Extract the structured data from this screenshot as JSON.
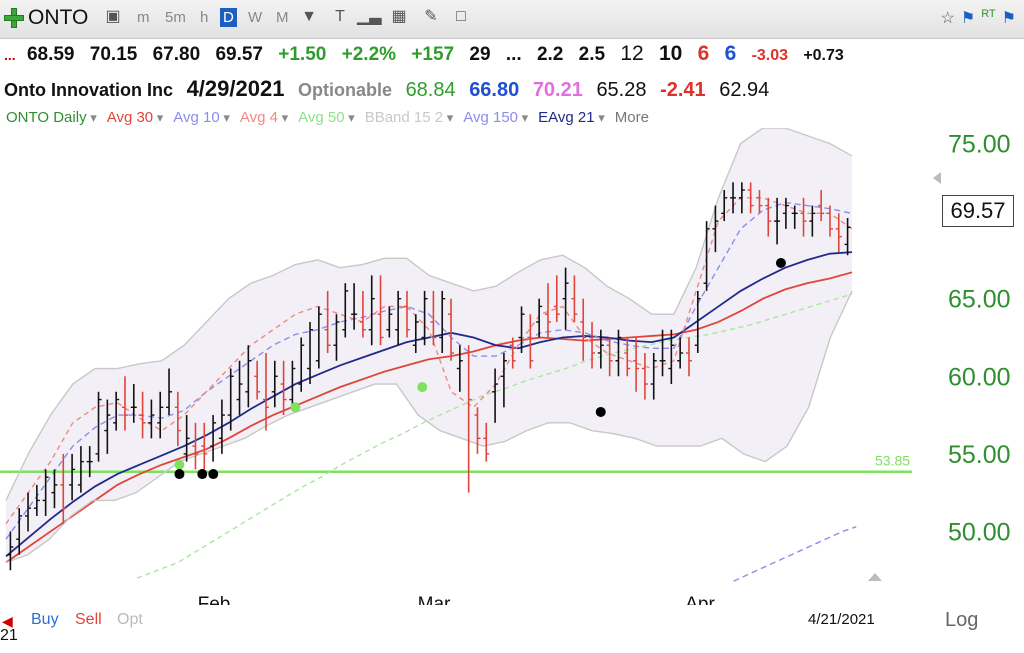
{
  "toolbar": {
    "symbol": "ONTO",
    "periods": [
      "m",
      "5m",
      "h",
      "D",
      "W",
      "M"
    ],
    "active_period": "D",
    "right_badge": "RT"
  },
  "quote": {
    "open": "68.59",
    "high": "70.15",
    "low": "67.80",
    "close": "69.57",
    "change": "+1.50",
    "change_pct": "+2.2%",
    "vol_change": "+157",
    "v1": "29",
    "ellipsis": "...",
    "v2": "2.2",
    "v3": "2.5",
    "v4": "12",
    "v5": "10",
    "v6": "6",
    "v7": "6",
    "v8": "-3.03",
    "v9": "+0.73",
    "company": "Onto Innovation Inc",
    "date": "4/29/2021",
    "optionable": "Optionable",
    "f1": "68.84",
    "f2": "66.80",
    "f3": "70.21",
    "f4": "65.28",
    "f5": "-2.41",
    "f6": "62.94"
  },
  "legend": {
    "items": [
      {
        "label": "ONTO Daily",
        "color": "#2f8f2f"
      },
      {
        "label": "Avg 30",
        "color": "#e0453a"
      },
      {
        "label": "Avg 10",
        "color": "#8c8cf0"
      },
      {
        "label": "Avg 4",
        "color": "#f08a80"
      },
      {
        "label": "Avg 50",
        "color": "#8fe08f"
      },
      {
        "label": "BBand 15 2",
        "color": "#c8c8c8"
      },
      {
        "label": "Avg 150",
        "color": "#8c8cf0"
      },
      {
        "label": "EAvg 21",
        "color": "#1f2a8a"
      },
      {
        "label": "More",
        "color": "#777777"
      }
    ]
  },
  "chart_data": {
    "type": "line",
    "title": "ONTO Daily",
    "x_labels": [
      "Feb",
      "Mar",
      "Apr"
    ],
    "y_ticks": [
      "75.00",
      "65.00",
      "60.00",
      "55.00",
      "50.00"
    ],
    "y_range": [
      47.0,
      76.0
    ],
    "last_price": "69.57",
    "bottom_date": "4/21/2021",
    "horizontal_line": {
      "value": 53.85,
      "label": "53.85",
      "color": "#80e060"
    },
    "candles": [
      [
        48.5,
        50.0,
        47.5,
        49.0
      ],
      [
        49.5,
        51.5,
        48.5,
        51.0
      ],
      [
        51.0,
        52.5,
        50.0,
        51.5
      ],
      [
        51.5,
        53.0,
        51.0,
        52.0
      ],
      [
        52.0,
        54.0,
        51.0,
        53.5
      ],
      [
        52.5,
        54.0,
        51.5,
        53.0
      ],
      [
        53.0,
        55.0,
        50.5,
        51.5
      ],
      [
        53.0,
        55.0,
        52.0,
        54.0
      ],
      [
        53.0,
        55.5,
        52.5,
        54.5
      ],
      [
        54.5,
        55.5,
        53.5,
        54.5
      ],
      [
        55.0,
        59.0,
        54.5,
        58.5
      ],
      [
        56.5,
        58.5,
        55.0,
        57.5
      ],
      [
        57.0,
        59.0,
        56.5,
        58.5
      ],
      [
        58.0,
        60.0,
        56.5,
        57.5
      ],
      [
        58.0,
        59.5,
        57.0,
        58.0
      ],
      [
        57.5,
        59.0,
        56.0,
        57.0
      ],
      [
        57.0,
        58.5,
        56.0,
        57.5
      ],
      [
        57.0,
        59.0,
        56.0,
        58.0
      ],
      [
        58.0,
        60.5,
        57.5,
        59.0
      ],
      [
        58.0,
        59.0,
        55.5,
        56.5
      ],
      [
        55.0,
        57.5,
        54.5,
        56.0
      ],
      [
        55.5,
        57.0,
        54.0,
        55.0
      ],
      [
        55.5,
        57.0,
        54.0,
        55.0
      ],
      [
        55.5,
        57.5,
        54.5,
        57.0
      ],
      [
        56.0,
        58.5,
        55.0,
        57.5
      ],
      [
        57.5,
        60.5,
        56.5,
        60.0
      ],
      [
        58.5,
        61.0,
        57.5,
        59.5
      ],
      [
        59.0,
        62.0,
        58.0,
        61.0
      ],
      [
        60.0,
        61.0,
        58.5,
        59.0
      ],
      [
        58.5,
        61.5,
        56.5,
        58.0
      ],
      [
        59.0,
        61.0,
        58.0,
        60.0
      ],
      [
        59.5,
        61.0,
        57.5,
        58.5
      ],
      [
        58.5,
        61.0,
        58.0,
        60.5
      ],
      [
        59.5,
        62.5,
        59.0,
        62.0
      ],
      [
        60.5,
        63.5,
        59.5,
        63.0
      ],
      [
        61.0,
        64.5,
        60.5,
        64.0
      ],
      [
        63.0,
        65.5,
        61.5,
        62.0
      ],
      [
        62.0,
        64.0,
        61.0,
        63.5
      ],
      [
        63.0,
        66.0,
        62.5,
        65.5
      ],
      [
        64.0,
        66.0,
        63.0,
        64.0
      ],
      [
        63.5,
        65.5,
        62.5,
        63.0
      ],
      [
        63.0,
        66.5,
        62.0,
        65.0
      ],
      [
        64.0,
        66.5,
        62.0,
        62.5
      ],
      [
        63.0,
        64.5,
        62.5,
        64.0
      ],
      [
        63.0,
        65.5,
        62.0,
        65.0
      ],
      [
        64.5,
        65.5,
        62.5,
        63.0
      ],
      [
        62.0,
        64.0,
        61.5,
        63.5
      ],
      [
        62.5,
        65.5,
        62.0,
        65.0
      ],
      [
        63.5,
        65.5,
        62.0,
        62.5
      ],
      [
        62.5,
        65.5,
        61.5,
        65.0
      ],
      [
        64.0,
        65.0,
        61.0,
        61.5
      ],
      [
        60.5,
        62.0,
        59.0,
        61.0
      ],
      [
        61.5,
        62.0,
        52.5,
        58.5
      ],
      [
        57.5,
        58.0,
        55.0,
        56.0
      ],
      [
        56.0,
        57.0,
        54.5,
        55.0
      ],
      [
        59.0,
        60.5,
        57.0,
        59.5
      ],
      [
        60.0,
        61.5,
        58.0,
        61.0
      ],
      [
        62.0,
        62.5,
        60.5,
        61.0
      ],
      [
        62.5,
        64.5,
        61.5,
        64.0
      ],
      [
        62.5,
        64.0,
        60.5,
        61.0
      ],
      [
        63.5,
        65.0,
        62.5,
        64.5
      ],
      [
        64.0,
        66.0,
        62.5,
        63.5
      ],
      [
        64.5,
        66.5,
        63.5,
        64.0
      ],
      [
        65.0,
        67.0,
        63.0,
        66.0
      ],
      [
        65.0,
        66.5,
        63.5,
        64.0
      ],
      [
        63.5,
        65.0,
        61.0,
        62.5
      ],
      [
        62.5,
        63.5,
        60.5,
        61.5
      ],
      [
        61.5,
        63.0,
        60.5,
        62.0
      ],
      [
        62.0,
        62.5,
        60.0,
        61.0
      ],
      [
        61.0,
        63.0,
        60.0,
        62.5
      ],
      [
        61.5,
        62.5,
        60.0,
        60.5
      ],
      [
        61.0,
        62.5,
        59.0,
        60.5
      ],
      [
        60.5,
        61.5,
        58.5,
        59.5
      ],
      [
        59.5,
        61.5,
        58.5,
        61.0
      ],
      [
        61.0,
        63.0,
        60.0,
        61.0
      ],
      [
        60.5,
        63.0,
        59.5,
        62.0
      ],
      [
        61.0,
        62.5,
        60.5,
        61.5
      ],
      [
        61.5,
        62.5,
        60.0,
        61.0
      ],
      [
        62.0,
        65.5,
        61.5,
        65.0
      ],
      [
        66.0,
        70.0,
        65.5,
        69.5
      ],
      [
        69.5,
        71.0,
        68.0,
        70.0
      ],
      [
        70.5,
        72.0,
        70.0,
        71.5
      ],
      [
        71.5,
        72.5,
        70.5,
        71.5
      ],
      [
        71.5,
        72.5,
        70.5,
        72.0
      ],
      [
        72.0,
        72.5,
        70.5,
        71.0
      ],
      [
        71.5,
        72.0,
        70.5,
        71.0
      ],
      [
        71.0,
        71.5,
        69.0,
        70.0
      ],
      [
        70.0,
        71.5,
        68.5,
        70.0
      ],
      [
        70.5,
        71.5,
        69.5,
        71.0
      ],
      [
        70.5,
        71.0,
        69.5,
        70.5
      ],
      [
        70.5,
        71.5,
        69.0,
        70.0
      ],
      [
        70.0,
        71.0,
        69.0,
        70.5
      ],
      [
        71.0,
        72.0,
        70.0,
        70.5
      ],
      [
        70.5,
        71.0,
        69.0,
        69.5
      ],
      [
        69.5,
        70.5,
        68.0,
        69.0
      ],
      [
        68.5,
        70.2,
        67.8,
        69.6
      ]
    ],
    "series": [
      {
        "name": "Avg 30",
        "color": "#e0453a",
        "dash": "",
        "values": [
          48.0,
          49.0,
          50.0,
          51.0,
          52.0,
          53.0,
          53.7,
          54.3,
          54.8,
          55.3,
          56.0,
          56.8,
          57.5,
          58.1,
          58.7,
          59.3,
          59.8,
          60.3,
          60.7,
          61.1,
          61.3,
          61.6,
          62.0,
          62.3,
          62.5,
          62.4,
          62.3,
          62.4,
          62.5,
          62.6,
          62.7,
          63.0,
          63.5,
          64.2,
          65.0,
          65.6,
          66.0,
          66.3,
          66.7
        ]
      },
      {
        "name": "EAvg 21",
        "color": "#1f2a8a",
        "dash": "",
        "values": [
          48.4,
          49.6,
          50.8,
          51.9,
          52.9,
          53.7,
          54.3,
          54.9,
          55.5,
          56.2,
          57.0,
          57.9,
          58.7,
          59.5,
          60.1,
          60.7,
          61.2,
          61.7,
          62.2,
          62.5,
          62.8,
          62.5,
          62.0,
          61.8,
          62.2,
          62.5,
          62.6,
          62.5,
          62.3,
          62.2,
          62.5,
          63.5,
          64.5,
          65.5,
          66.3,
          67.0,
          67.5,
          67.9,
          68.0
        ]
      },
      {
        "name": "Avg 10",
        "color": "#8c8cf0",
        "dash": "6,4",
        "values": [
          49.5,
          51.5,
          53.5,
          55.5,
          56.7,
          57.5,
          57.5,
          57.3,
          57.8,
          59.0,
          60.0,
          61.0,
          62.0,
          62.7,
          63.0,
          63.5,
          63.8,
          64.2,
          64.5,
          64.0,
          62.5,
          61.3,
          61.3,
          62.0,
          62.8,
          63.0,
          62.8,
          62.3,
          62.0,
          61.8,
          61.8,
          64.5,
          67.0,
          69.5,
          70.7,
          71.2,
          71.0,
          70.8,
          70.5
        ]
      },
      {
        "name": "Avg 4",
        "color": "#f08a80",
        "dash": "5,4",
        "values": [
          50.5,
          52.5,
          54.5,
          57.0,
          58.0,
          58.3,
          57.3,
          56.5,
          57.5,
          59.0,
          60.5,
          62.0,
          63.0,
          64.0,
          64.5,
          64.0,
          63.5,
          64.5,
          64.5,
          63.0,
          59.0,
          58.0,
          59.5,
          62.0,
          64.0,
          64.5,
          62.5,
          61.5,
          61.0,
          60.5,
          61.0,
          65.5,
          70.0,
          71.5,
          71.5,
          71.0,
          70.5,
          70.5,
          69.5
        ]
      },
      {
        "name": "Avg 50",
        "color": "#a8e6a0",
        "dash": "5,4",
        "values": [
          47.0,
          47.5,
          48.0,
          48.8,
          49.6,
          50.4,
          51.2,
          52.0,
          52.8,
          53.5,
          54.3,
          55.0,
          55.7,
          56.3,
          57.0,
          57.6,
          58.2,
          58.8,
          59.2,
          59.7,
          60.1,
          60.5,
          61.0,
          61.4,
          61.7,
          62.0,
          62.3,
          62.5,
          62.7,
          63.0,
          63.3,
          63.7,
          64.1,
          64.5,
          64.9,
          65.3
        ]
      },
      {
        "name": "Avg 150",
        "color": "#8c8cf0",
        "dash": "6,4",
        "values": [
          46.8,
          47.2,
          47.6,
          48.0,
          48.4,
          48.8,
          49.2,
          49.6,
          50.0,
          50.3
        ]
      },
      {
        "name": "BBand upper",
        "color": "#c8c8c8",
        "dash": "",
        "values": [
          52.0,
          55.0,
          57.5,
          59.5,
          60.5,
          60.5,
          60.8,
          61.0,
          62.0,
          63.5,
          65.0,
          66.0,
          66.5,
          67.2,
          67.5,
          67.0,
          67.2,
          67.6,
          67.6,
          66.5,
          66.0,
          65.5,
          65.8,
          66.7,
          67.5,
          67.8,
          67.0,
          65.8,
          65.0,
          64.0,
          64.0,
          67.0,
          71.5,
          75.0,
          76.0,
          76.0,
          75.5,
          75.0,
          74.2
        ]
      },
      {
        "name": "BBand lower",
        "color": "#c8c8c8",
        "dash": "",
        "values": [
          48.0,
          48.5,
          49.5,
          51.0,
          52.0,
          52.0,
          52.5,
          53.5,
          54.5,
          55.0,
          55.5,
          56.0,
          56.8,
          57.5,
          58.0,
          58.5,
          59.0,
          59.5,
          59.5,
          57.5,
          56.5,
          56.0,
          55.5,
          55.8,
          56.5,
          57.0,
          57.0,
          56.5,
          56.3,
          56.0,
          55.5,
          55.5,
          55.5,
          56.0,
          55.0,
          54.5,
          55.5,
          58.0,
          62.5,
          65.5
        ]
      }
    ],
    "markers": [
      {
        "x": 0.205,
        "value": 54.3,
        "color": "#80e060"
      },
      {
        "x": 0.342,
        "value": 58.0,
        "color": "#80e060"
      },
      {
        "x": 0.492,
        "value": 59.3,
        "color": "#80e060"
      },
      {
        "x": 0.205,
        "value": 53.7,
        "color": "#000000"
      },
      {
        "x": 0.232,
        "value": 53.7,
        "color": "#000000"
      },
      {
        "x": 0.245,
        "value": 53.7,
        "color": "#000000"
      },
      {
        "x": 0.703,
        "value": 57.7,
        "color": "#000000"
      },
      {
        "x": 0.916,
        "value": 67.3,
        "color": "#000000"
      }
    ]
  },
  "bottom": {
    "buy": "Buy",
    "sell": "Sell",
    "opt": "Opt",
    "log": "Log",
    "left_num": "21"
  }
}
